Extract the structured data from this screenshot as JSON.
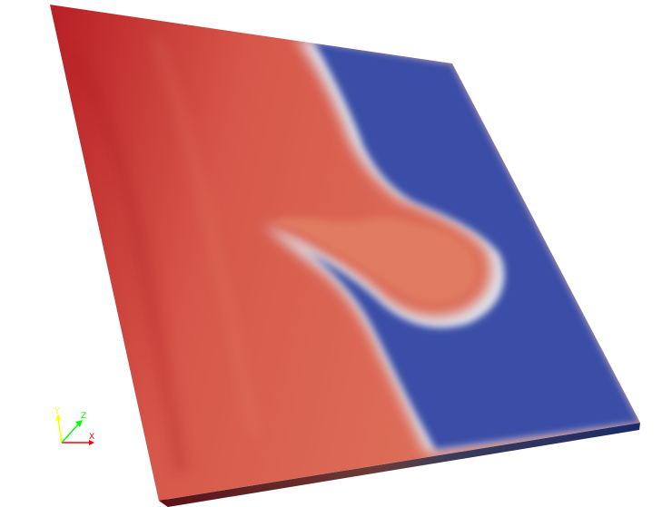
{
  "render_view": {
    "background_color": "#ffffff",
    "scalar_colormap": {
      "high_color": "#c0322e",
      "mid_color": "#dfe3ee",
      "low_color": "#3a4ea6"
    },
    "orientation_axes": {
      "x_color": "#ff0000",
      "y_color": "#ffff00",
      "z_color": "#00ff00",
      "x_label": "X",
      "y_label": "Y",
      "z_label": "Z"
    }
  }
}
